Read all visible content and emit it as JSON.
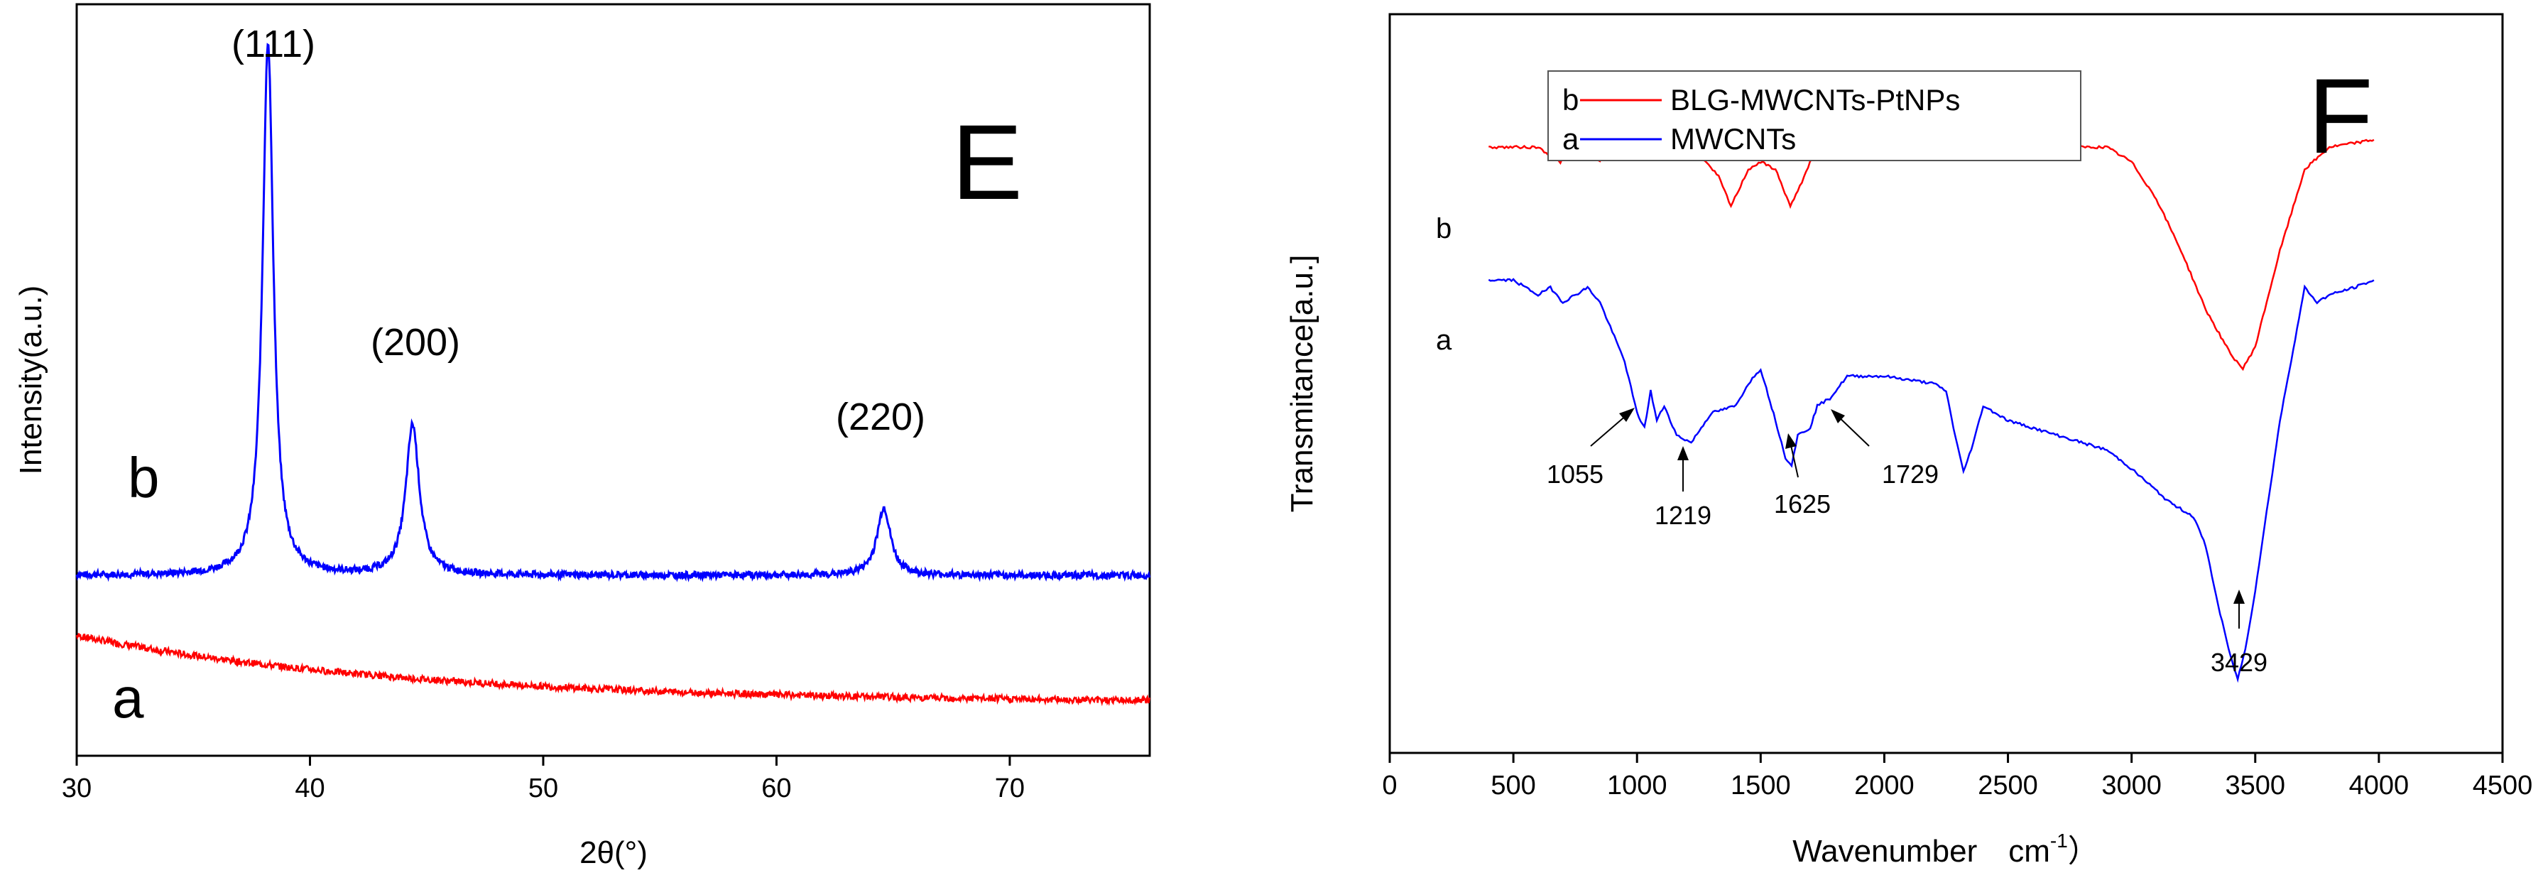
{
  "chart_data": [
    {
      "type": "line",
      "panel_label": "E",
      "xlabel": "2θ(°)",
      "ylabel": "Intensity(a.u.)",
      "xlim": [
        30,
        76
      ],
      "ylim": [
        0,
        100
      ],
      "xticks": [
        30,
        40,
        50,
        60,
        70
      ],
      "x_tick_labels": [
        "30",
        "40",
        "50",
        "60",
        "70"
      ],
      "series": [
        {
          "name": "b",
          "color": "#0000ff",
          "baseline": 24,
          "peaks": [
            {
              "x": 38.2,
              "height": 71,
              "width": 0.28
            },
            {
              "x": 44.4,
              "height": 20,
              "width": 0.35
            },
            {
              "x": 64.6,
              "height": 9,
              "width": 0.35
            }
          ]
        },
        {
          "name": "a",
          "color": "#ff0000",
          "start": 16,
          "end": 7
        }
      ],
      "annotations": [
        {
          "text": "(111)",
          "x": 38.2
        },
        {
          "text": "(200)",
          "x": 44.4
        },
        {
          "text": "(220)",
          "x": 64.6
        }
      ],
      "curve_labels": [
        "b",
        "a"
      ]
    },
    {
      "type": "line",
      "panel_label": "F",
      "xlabel_main": "Wavenumber　cm",
      "xlabel_sup": "-1",
      "xlabel_tail": "）",
      "ylabel": "Transmitance[a.u.]",
      "xlim": [
        0,
        4500
      ],
      "ylim": [
        0,
        100
      ],
      "xticks": [
        0,
        500,
        1000,
        1500,
        2000,
        2500,
        3000,
        3500,
        4000,
        4500
      ],
      "x_tick_labels": [
        "0",
        "500",
        "1000",
        "1500",
        "2000",
        "2500",
        "3000",
        "3500",
        "4000",
        "4500"
      ],
      "legend": [
        {
          "key": "b",
          "name": "BLG-MWCNTs-PtNPs",
          "color": "#ff0000"
        },
        {
          "key": "a",
          "name": "MWCNTs",
          "color": "#0000ff"
        }
      ],
      "series": [
        {
          "name": "b",
          "color": "#ff0000",
          "points": [
            [
              400,
              82
            ],
            [
              600,
              82
            ],
            [
              690,
              80
            ],
            [
              730,
              82
            ],
            [
              800,
              82
            ],
            [
              850,
              80
            ],
            [
              880,
              82
            ],
            [
              1100,
              82
            ],
            [
              1250,
              81
            ],
            [
              1330,
              78
            ],
            [
              1380,
              74
            ],
            [
              1450,
              79
            ],
            [
              1500,
              80
            ],
            [
              1560,
              79
            ],
            [
              1620,
              74
            ],
            [
              1650,
              76
            ],
            [
              1700,
              80
            ],
            [
              1800,
              82
            ],
            [
              2300,
              82
            ],
            [
              2340,
              81
            ],
            [
              2360,
              83
            ],
            [
              2400,
              82
            ],
            [
              2900,
              82
            ],
            [
              3000,
              80
            ],
            [
              3100,
              75
            ],
            [
              3200,
              68
            ],
            [
              3300,
              60
            ],
            [
              3400,
              54
            ],
            [
              3450,
              52
            ],
            [
              3500,
              55
            ],
            [
              3600,
              68
            ],
            [
              3700,
              79
            ],
            [
              3800,
              82
            ],
            [
              3980,
              83
            ]
          ]
        },
        {
          "name": "a",
          "color": "#0000ff",
          "points": [
            [
              400,
              64
            ],
            [
              500,
              64
            ],
            [
              600,
              62
            ],
            [
              650,
              63
            ],
            [
              700,
              61
            ],
            [
              800,
              63
            ],
            [
              850,
              61
            ],
            [
              900,
              57
            ],
            [
              950,
              53
            ],
            [
              1000,
              46
            ],
            [
              1030,
              44
            ],
            [
              1055,
              49
            ],
            [
              1080,
              45
            ],
            [
              1110,
              47
            ],
            [
              1160,
              43
            ],
            [
              1219,
              42
            ],
            [
              1300,
              46
            ],
            [
              1400,
              47
            ],
            [
              1450,
              50
            ],
            [
              1500,
              52
            ],
            [
              1560,
              45
            ],
            [
              1600,
              40
            ],
            [
              1625,
              39
            ],
            [
              1650,
              43
            ],
            [
              1700,
              44
            ],
            [
              1729,
              47
            ],
            [
              1780,
              48
            ],
            [
              1850,
              51
            ],
            [
              2000,
              51
            ],
            [
              2200,
              50
            ],
            [
              2250,
              49
            ],
            [
              2280,
              44
            ],
            [
              2320,
              38
            ],
            [
              2360,
              42
            ],
            [
              2400,
              47
            ],
            [
              2500,
              45
            ],
            [
              2700,
              43
            ],
            [
              2900,
              41
            ],
            [
              2980,
              39
            ],
            [
              3050,
              37
            ],
            [
              3150,
              34
            ],
            [
              3250,
              32
            ],
            [
              3300,
              28
            ],
            [
              3350,
              20
            ],
            [
              3400,
              13
            ],
            [
              3429,
              10
            ],
            [
              3460,
              14
            ],
            [
              3500,
              22
            ],
            [
              3600,
              45
            ],
            [
              3700,
              63
            ],
            [
              3750,
              61
            ],
            [
              3800,
              62
            ],
            [
              3900,
              63
            ],
            [
              3980,
              64
            ]
          ]
        }
      ],
      "annotations": [
        {
          "text": "1055",
          "x": 1055
        },
        {
          "text": "1219",
          "x": 1219
        },
        {
          "text": "1625",
          "x": 1625
        },
        {
          "text": "1729",
          "x": 1729
        },
        {
          "text": "3429",
          "x": 3429
        }
      ],
      "curve_labels": [
        "b",
        "a"
      ]
    }
  ]
}
